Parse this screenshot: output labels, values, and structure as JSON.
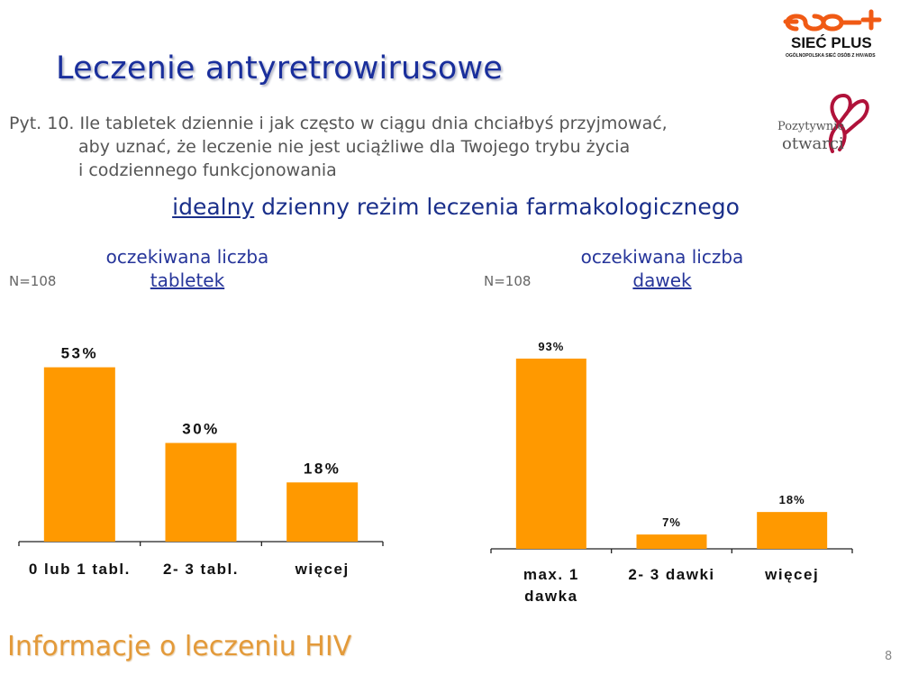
{
  "header": {
    "title": "Leczenie antyretrowirusowe",
    "question_line1": "Pyt. 10. Ile tabletek dziennie i jak często w ciągu dnia chciałbyś przyjmować,",
    "question_line2": "aby uznać, że leczenie nie jest uciążliwe dla Twojego trybu życia",
    "question_line3": "i codziennego funkcjonowania",
    "subtitle_underlined": "idealny",
    "subtitle_rest": " dzienny reżim leczenia farmakologicznego"
  },
  "logos": {
    "siec_plus": {
      "name": "SIEĆ PLUS",
      "tagline": "OGÓLNOPOLSKA SIEĆ OSÓB Z HIV/AIDS",
      "color": "#f05a14"
    },
    "pozytywnie_otwarci": {
      "line1": "Pozytywnie",
      "line2": "otwarci",
      "ribbon_color": "#b0123a"
    }
  },
  "footer": {
    "text": "Informacje o leczeniu HIV",
    "page_number": "8"
  },
  "colors": {
    "bar": "#ff9900",
    "title": "#1a2f9c",
    "footer": "#e39a3a"
  },
  "chart_data": [
    {
      "type": "bar",
      "title_line1": "oczekiwana liczba",
      "title_line2": "tabletek",
      "sample_label": "N=108",
      "categories": [
        "0 lub 1 tabl.",
        "2- 3 tabl.",
        "więcej"
      ],
      "category_lines": [
        [
          "0 lub 1 tabl."
        ],
        [
          "2- 3 tabl."
        ],
        [
          "więcej"
        ]
      ],
      "values": [
        53,
        30,
        18
      ],
      "value_labels": [
        "53%",
        "30%",
        "18%"
      ],
      "ylim": [
        0,
        100
      ],
      "grid": false,
      "xlabel": "",
      "ylabel": ""
    },
    {
      "type": "bar",
      "title_line1": "oczekiwana liczba",
      "title_line2": "dawek",
      "sample_label": "N=108",
      "categories": [
        "max. 1 dawka",
        "2- 3 dawki",
        "więcej"
      ],
      "category_lines": [
        [
          "max. 1",
          "dawka"
        ],
        [
          "2- 3 dawki"
        ],
        [
          "więcej"
        ]
      ],
      "values": [
        93,
        7,
        18
      ],
      "value_labels": [
        "93%",
        "7%",
        "18%"
      ],
      "ylim": [
        0,
        100
      ],
      "grid": false,
      "xlabel": "",
      "ylabel": ""
    }
  ]
}
